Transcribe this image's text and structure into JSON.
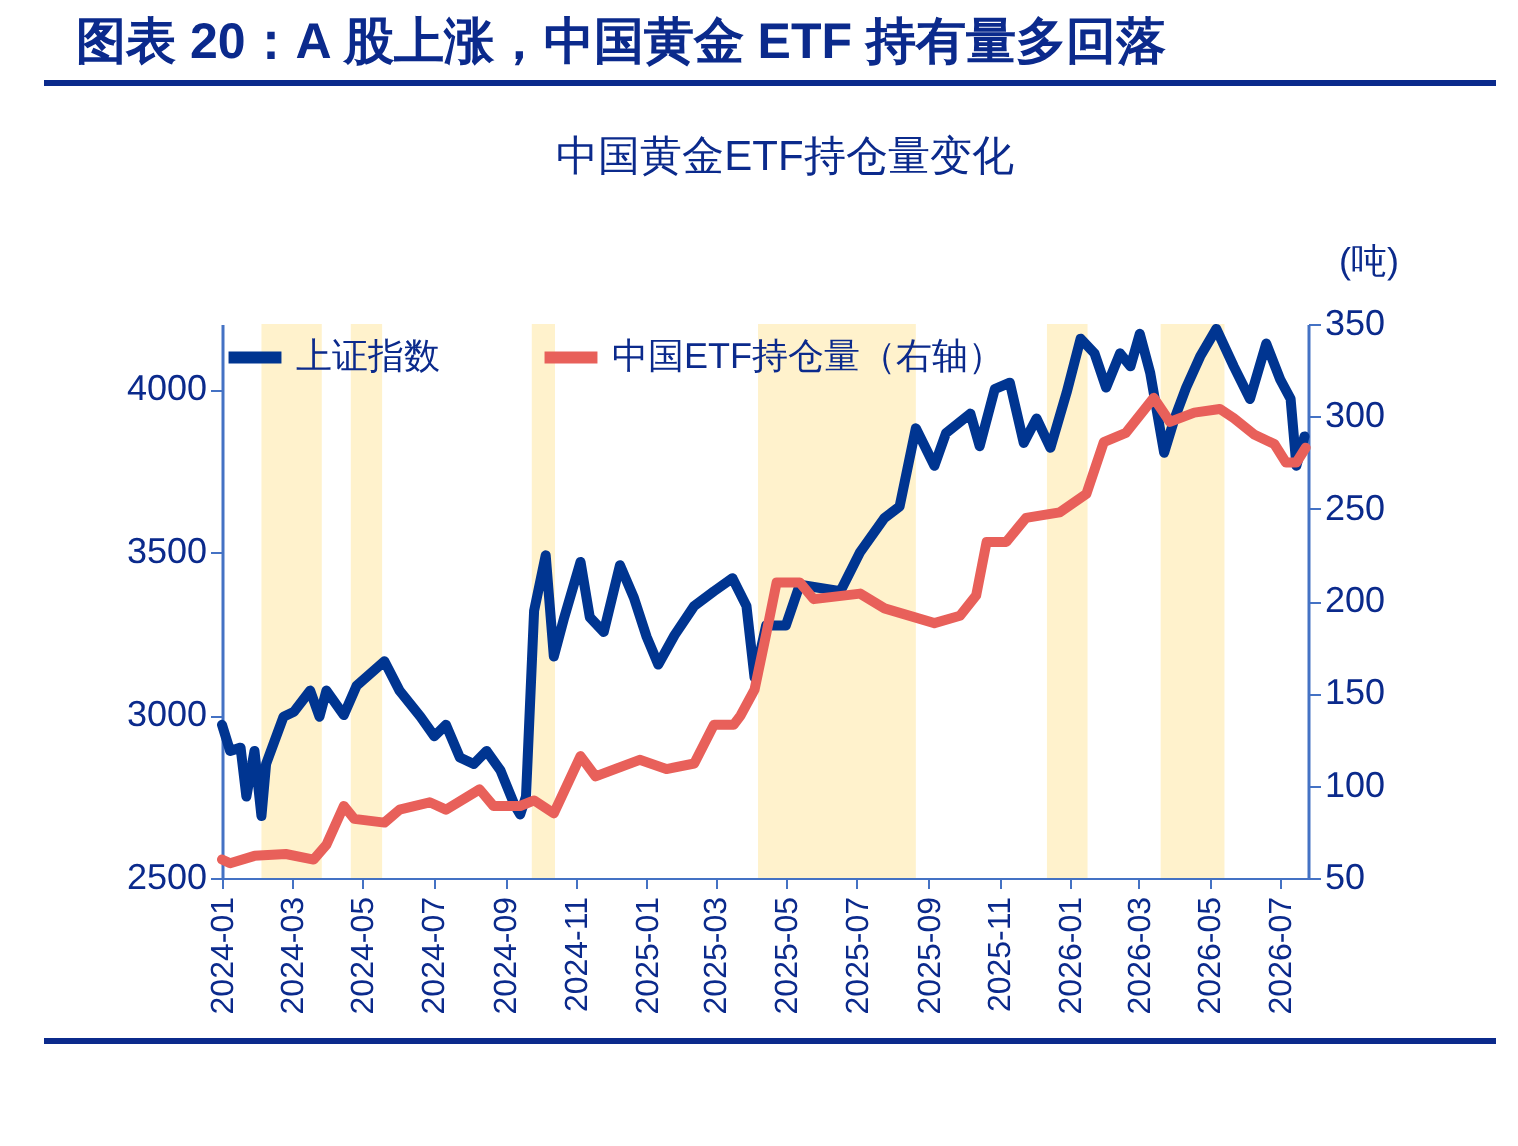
{
  "chart_data": {
    "type": "line",
    "title": "图表 20：A 股上涨，中国黄金 ETF 持有量多回落",
    "subtitle": "中国黄金ETF持仓量变化",
    "y2label": "(吨)",
    "xlim": [
      "2024-01-01",
      "2026-07-25"
    ],
    "xticks": [
      "2024-01",
      "2024-03",
      "2024-05",
      "2024-07",
      "2024-09",
      "2024-11",
      "2025-01",
      "2025-03",
      "2025-05",
      "2025-07",
      "2025-09",
      "2025-11",
      "2026-01",
      "2026-03",
      "2026-05",
      "2026-07"
    ],
    "ylim": [
      2500,
      4200
    ],
    "yticks": [
      2500,
      3000,
      3500,
      4000
    ],
    "y2lim": [
      50,
      350
    ],
    "y2ticks": [
      50,
      100,
      150,
      200,
      250,
      300,
      350
    ],
    "grid": false,
    "legend": "top left",
    "marker": "none",
    "line_style": "solid",
    "bands": [
      {
        "axis": "x",
        "from": "2024-02-04",
        "to": "2024-03-27",
        "color": "#fff2cc"
      },
      {
        "axis": "x",
        "from": "2024-04-21",
        "to": "2024-05-18",
        "color": "#fff2cc"
      },
      {
        "axis": "x",
        "from": "2024-09-24",
        "to": "2024-10-14",
        "color": "#fff2cc"
      },
      {
        "axis": "x",
        "from": "2025-04-07",
        "to": "2025-08-21",
        "color": "#fff2cc"
      },
      {
        "axis": "x",
        "from": "2025-12-12",
        "to": "2026-01-16",
        "color": "#fff2cc"
      },
      {
        "axis": "x",
        "from": "2026-03-20",
        "to": "2026-05-14",
        "color": "#fff2cc"
      }
    ],
    "series": [
      {
        "name": "上证指数",
        "color": "#003591",
        "x": [
          "2024-01-01",
          "2024-01-08",
          "2024-01-17",
          "2024-01-22",
          "2024-01-29",
          "2024-02-04",
          "2024-02-08",
          "2024-02-23",
          "2024-03-03",
          "2024-03-17",
          "2024-03-25",
          "2024-03-31",
          "2024-04-15",
          "2024-04-26",
          "2024-05-20",
          "2024-06-02",
          "2024-06-20",
          "2024-07-02",
          "2024-07-12",
          "2024-07-24",
          "2024-08-05",
          "2024-08-16",
          "2024-08-28",
          "2024-09-09",
          "2024-09-14",
          "2024-09-19",
          "2024-09-26",
          "2024-10-06",
          "2024-10-13",
          "2024-10-22",
          "2024-11-05",
          "2024-11-13",
          "2024-11-25",
          "2024-12-09",
          "2024-12-21",
          "2025-01-01",
          "2025-01-11",
          "2025-01-25",
          "2025-02-11",
          "2025-02-28",
          "2025-03-16",
          "2025-03-28",
          "2025-04-04",
          "2025-04-14",
          "2025-05-01",
          "2025-05-13",
          "2025-06-17",
          "2025-07-04",
          "2025-07-25",
          "2025-08-07",
          "2025-08-21",
          "2025-09-06",
          "2025-09-16",
          "2025-10-07",
          "2025-10-15",
          "2025-10-28",
          "2025-11-10",
          "2025-11-22",
          "2025-12-03",
          "2025-12-15",
          "2025-12-29",
          "2026-01-10",
          "2026-01-22",
          "2026-02-01",
          "2026-02-13",
          "2026-02-22",
          "2026-03-02",
          "2026-03-11",
          "2026-03-23",
          "2026-04-01",
          "2026-04-11",
          "2026-04-23",
          "2026-05-07",
          "2026-05-22",
          "2026-06-05",
          "2026-06-19",
          "2026-07-01",
          "2026-07-10",
          "2026-07-15",
          "2026-07-22"
        ],
        "values": [
          2970,
          2890,
          2900,
          2750,
          2890,
          2690,
          2850,
          2995,
          3010,
          3075,
          2995,
          3075,
          3000,
          3090,
          3165,
          3075,
          2995,
          2935,
          2970,
          2870,
          2850,
          2890,
          2830,
          2725,
          2695,
          2750,
          3320,
          3490,
          3180,
          3300,
          3470,
          3300,
          3255,
          3460,
          3360,
          3240,
          3155,
          3245,
          3335,
          3380,
          3420,
          3335,
          3115,
          3275,
          3275,
          3400,
          3380,
          3500,
          3605,
          3640,
          3880,
          3765,
          3865,
          3925,
          3825,
          4000,
          4020,
          3835,
          3910,
          3820,
          3990,
          4155,
          4110,
          4005,
          4110,
          4070,
          4170,
          4050,
          3805,
          3910,
          4005,
          4100,
          4185,
          4070,
          3970,
          4140,
          4030,
          3970,
          3765,
          3855
        ]
      },
      {
        "name": "中国ETF持仓量（右轴）",
        "color": "#e8605a",
        "axis": "y2",
        "x": [
          "2024-01-01",
          "2024-01-08",
          "2024-01-29",
          "2024-02-25",
          "2024-03-20",
          "2024-03-31",
          "2024-04-15",
          "2024-04-24",
          "2024-05-20",
          "2024-06-02",
          "2024-06-28",
          "2024-07-12",
          "2024-08-10",
          "2024-08-22",
          "2024-09-14",
          "2024-09-26",
          "2024-10-13",
          "2024-11-05",
          "2024-11-18",
          "2024-12-26",
          "2025-01-18",
          "2025-02-11",
          "2025-02-28",
          "2025-03-17",
          "2025-03-23",
          "2025-04-04",
          "2025-04-14",
          "2025-04-23",
          "2025-05-13",
          "2025-05-25",
          "2025-07-04",
          "2025-07-25",
          "2025-09-06",
          "2025-09-28",
          "2025-10-12",
          "2025-10-21",
          "2025-11-07",
          "2025-11-24",
          "2025-12-23",
          "2026-01-15",
          "2026-01-30",
          "2026-02-18",
          "2026-03-14",
          "2026-03-28",
          "2026-04-18",
          "2026-05-10",
          "2026-05-22",
          "2026-06-09",
          "2026-06-26",
          "2026-07-06",
          "2026-07-15",
          "2026-07-23"
        ],
        "values": [
          60,
          58,
          62,
          63,
          60,
          68,
          89,
          82,
          80,
          87,
          91,
          87,
          98,
          89,
          89,
          92,
          85,
          116,
          105,
          114,
          109,
          112,
          133,
          133,
          138,
          152,
          182,
          210,
          210,
          201,
          204,
          196,
          188,
          192,
          203,
          232,
          232,
          245,
          248,
          258,
          286,
          291,
          310,
          297,
          302,
          304,
          299,
          290,
          285,
          275,
          275,
          283
        ]
      }
    ]
  }
}
